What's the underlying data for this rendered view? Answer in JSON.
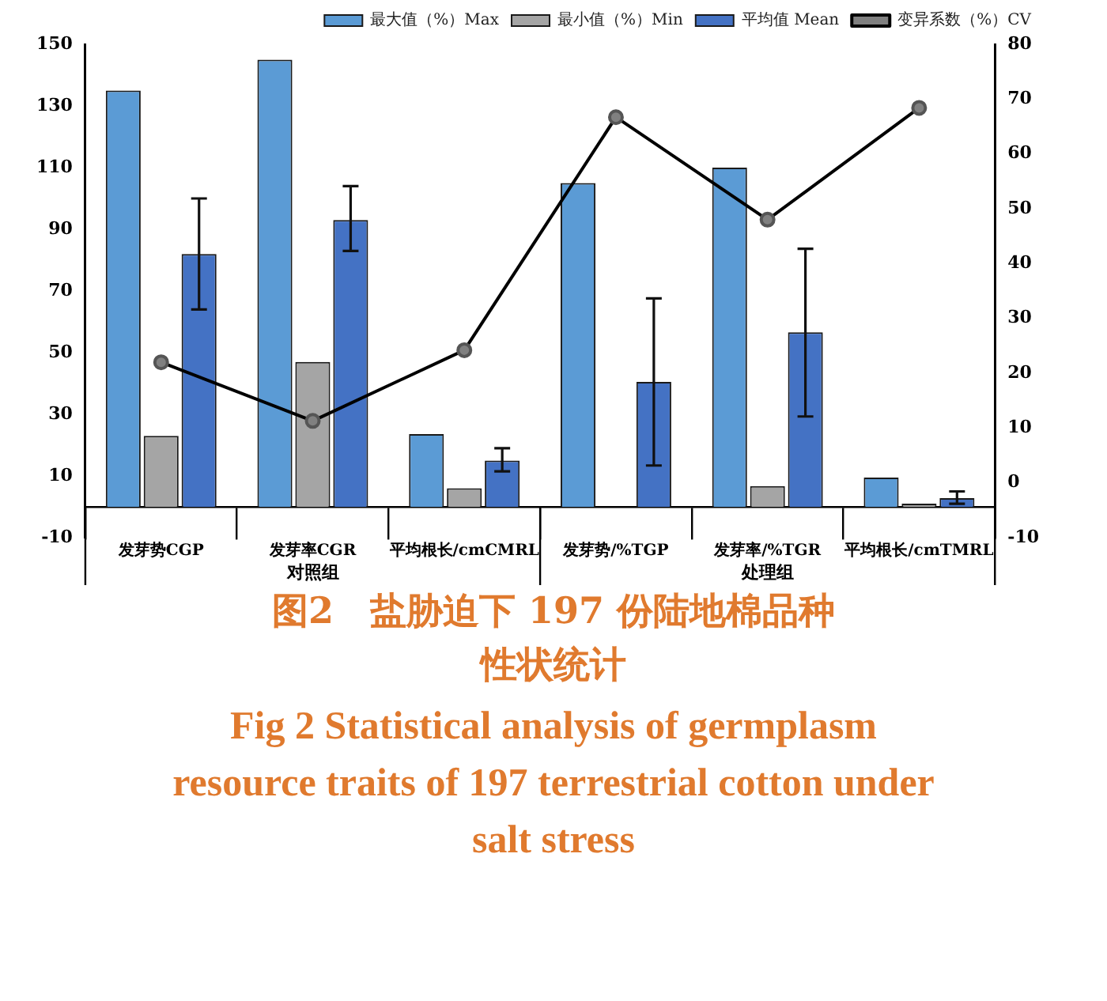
{
  "chart_data": {
    "type": "bar",
    "title": "图2　盐胁迫下 197 份陆地棉品种性状统计",
    "subtitle": "Fig 2 Statistical analysis of germplasm resource traits of 197 terrestrial cotton under salt stress",
    "categories": [
      "发芽势CGP",
      "发芽率CGR",
      "平均根长/cmCMRL",
      "发芽势/%TGP",
      "发芽率/%TGR",
      "平均根长/cmTMRL"
    ],
    "annotations": [
      "对照组",
      "处理组"
    ],
    "series": [
      {
        "name": "最大值（%）Max",
        "color": "#5b9bd5",
        "values": [
          135,
          145,
          23.6,
          105,
          110,
          9.5
        ]
      },
      {
        "name": "最小值（%）Min",
        "color": "#a5a5a5",
        "values": [
          23,
          47,
          6,
          0,
          6.7,
          1
        ]
      },
      {
        "name": "平均值 Mean",
        "color": "#4472c4",
        "values": [
          82,
          93,
          15,
          40.5,
          56.6,
          2.8
        ],
        "errors": [
          [
            64,
            100
          ],
          [
            83,
            104
          ],
          [
            11.5,
            19
          ],
          [
            13.4,
            67.6
          ],
          [
            29.3,
            83.7
          ],
          [
            1,
            5
          ]
        ]
      },
      {
        "name": "变异系数（%）CV",
        "type": "line",
        "axis": "y2",
        "color": "#000000",
        "values": [
          22,
          11.3,
          24.2,
          66.7,
          48,
          68.4
        ]
      }
    ],
    "ylim": [
      -10,
      150
    ],
    "yticks": [
      -10,
      10,
      30,
      50,
      70,
      90,
      110,
      130,
      150
    ],
    "y2lim": [
      -10,
      80
    ],
    "y2ticks": [
      -10,
      0,
      10,
      20,
      30,
      40,
      50,
      60,
      70,
      80
    ],
    "grid": false,
    "legend": "top right",
    "marker": "circle",
    "line_style": "solid"
  }
}
